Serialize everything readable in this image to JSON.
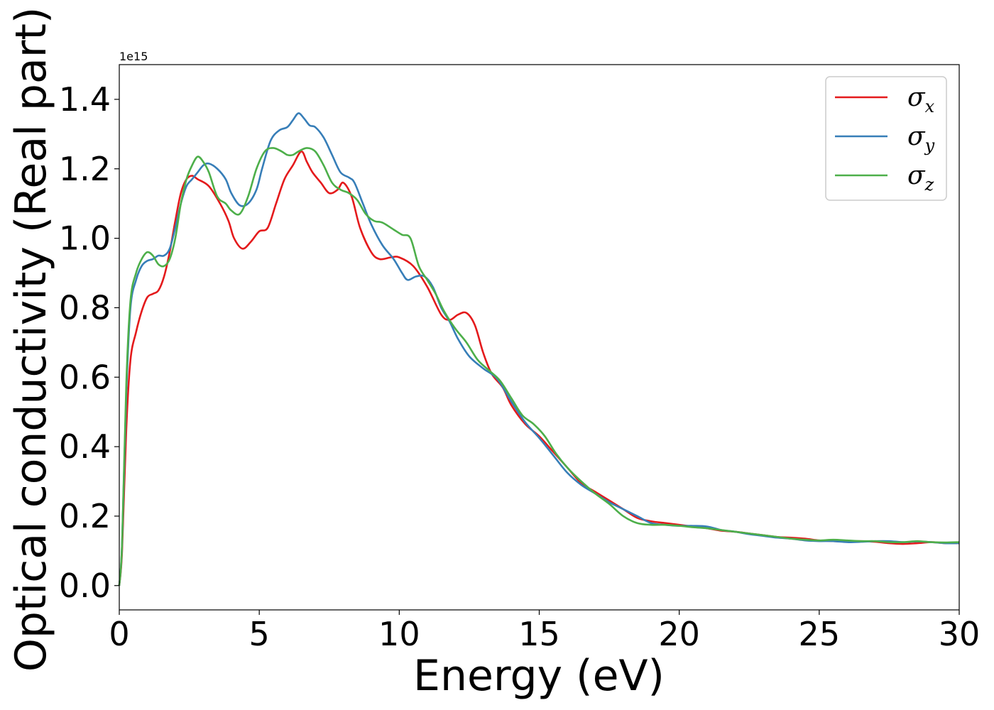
{
  "chart_data": {
    "type": "line",
    "xlabel": "Energy (eV)",
    "ylabel": "Optical conductivity (Real part)",
    "y_offset_label": "1e15",
    "xlim": [
      0,
      30
    ],
    "ylim": [
      -0.07,
      1.5
    ],
    "x_ticks": [
      0,
      5,
      10,
      15,
      20,
      25,
      30
    ],
    "x_tick_labels": [
      "0",
      "5",
      "10",
      "15",
      "20",
      "25",
      "30"
    ],
    "y_ticks": [
      0.0,
      0.2,
      0.4,
      0.6,
      0.8,
      1.0,
      1.2,
      1.4
    ],
    "y_tick_labels": [
      "0.0",
      "0.2",
      "0.4",
      "0.6",
      "0.8",
      "1.0",
      "1.2",
      "1.4"
    ],
    "grid": false,
    "legend_position": "top-right",
    "series": [
      {
        "name": "σ_x",
        "symbol": "σ",
        "subscript": "x",
        "color": "#e41a1c",
        "points": [
          [
            0,
            0
          ],
          [
            0.1,
            0.1
          ],
          [
            0.25,
            0.45
          ],
          [
            0.4,
            0.65
          ],
          [
            0.6,
            0.73
          ],
          [
            0.8,
            0.79
          ],
          [
            1.0,
            0.83
          ],
          [
            1.2,
            0.84
          ],
          [
            1.4,
            0.85
          ],
          [
            1.6,
            0.89
          ],
          [
            1.8,
            0.96
          ],
          [
            2.0,
            1.05
          ],
          [
            2.2,
            1.13
          ],
          [
            2.4,
            1.17
          ],
          [
            2.6,
            1.18
          ],
          [
            2.8,
            1.17
          ],
          [
            3.2,
            1.15
          ],
          [
            3.6,
            1.1
          ],
          [
            3.9,
            1.05
          ],
          [
            4.1,
            1.0
          ],
          [
            4.4,
            0.97
          ],
          [
            4.7,
            0.99
          ],
          [
            5.0,
            1.02
          ],
          [
            5.3,
            1.03
          ],
          [
            5.6,
            1.1
          ],
          [
            5.9,
            1.17
          ],
          [
            6.2,
            1.21
          ],
          [
            6.5,
            1.25
          ],
          [
            6.7,
            1.22
          ],
          [
            6.9,
            1.19
          ],
          [
            7.2,
            1.16
          ],
          [
            7.5,
            1.13
          ],
          [
            7.8,
            1.14
          ],
          [
            8.0,
            1.16
          ],
          [
            8.3,
            1.12
          ],
          [
            8.6,
            1.03
          ],
          [
            9.0,
            0.96
          ],
          [
            9.3,
            0.94
          ],
          [
            9.7,
            0.945
          ],
          [
            10.0,
            0.945
          ],
          [
            10.5,
            0.92
          ],
          [
            11.0,
            0.86
          ],
          [
            11.5,
            0.78
          ],
          [
            11.8,
            0.765
          ],
          [
            12.1,
            0.78
          ],
          [
            12.4,
            0.785
          ],
          [
            12.7,
            0.75
          ],
          [
            13.0,
            0.67
          ],
          [
            13.3,
            0.61
          ],
          [
            13.7,
            0.57
          ],
          [
            14.0,
            0.52
          ],
          [
            14.5,
            0.465
          ],
          [
            15.0,
            0.43
          ],
          [
            15.5,
            0.385
          ],
          [
            16.0,
            0.34
          ],
          [
            16.5,
            0.295
          ],
          [
            17.0,
            0.27
          ],
          [
            17.5,
            0.245
          ],
          [
            18.0,
            0.22
          ],
          [
            18.5,
            0.195
          ],
          [
            19.0,
            0.185
          ],
          [
            19.5,
            0.18
          ],
          [
            20.0,
            0.175
          ],
          [
            20.5,
            0.17
          ],
          [
            21.0,
            0.165
          ],
          [
            21.5,
            0.158
          ],
          [
            22.0,
            0.155
          ],
          [
            22.5,
            0.15
          ],
          [
            23.0,
            0.145
          ],
          [
            23.5,
            0.14
          ],
          [
            24.0,
            0.138
          ],
          [
            24.5,
            0.135
          ],
          [
            25.0,
            0.13
          ],
          [
            25.5,
            0.128
          ],
          [
            26.0,
            0.127
          ],
          [
            26.5,
            0.128
          ],
          [
            27.0,
            0.126
          ],
          [
            27.5,
            0.122
          ],
          [
            28.0,
            0.12
          ],
          [
            28.5,
            0.122
          ],
          [
            29.0,
            0.125
          ],
          [
            29.5,
            0.122
          ],
          [
            30.0,
            0.122
          ]
        ]
      },
      {
        "name": "σ_y",
        "symbol": "σ",
        "subscript": "y",
        "color": "#377eb8",
        "points": [
          [
            0,
            0
          ],
          [
            0.1,
            0.12
          ],
          [
            0.25,
            0.55
          ],
          [
            0.4,
            0.8
          ],
          [
            0.6,
            0.88
          ],
          [
            0.8,
            0.92
          ],
          [
            1.0,
            0.935
          ],
          [
            1.2,
            0.94
          ],
          [
            1.4,
            0.95
          ],
          [
            1.6,
            0.95
          ],
          [
            1.8,
            0.97
          ],
          [
            2.0,
            1.03
          ],
          [
            2.2,
            1.1
          ],
          [
            2.4,
            1.15
          ],
          [
            2.6,
            1.17
          ],
          [
            2.8,
            1.19
          ],
          [
            3.0,
            1.21
          ],
          [
            3.2,
            1.215
          ],
          [
            3.5,
            1.2
          ],
          [
            3.8,
            1.17
          ],
          [
            4.0,
            1.13
          ],
          [
            4.3,
            1.095
          ],
          [
            4.6,
            1.1
          ],
          [
            4.9,
            1.14
          ],
          [
            5.1,
            1.2
          ],
          [
            5.4,
            1.28
          ],
          [
            5.7,
            1.31
          ],
          [
            6.0,
            1.32
          ],
          [
            6.2,
            1.34
          ],
          [
            6.4,
            1.36
          ],
          [
            6.6,
            1.345
          ],
          [
            6.8,
            1.325
          ],
          [
            7.0,
            1.32
          ],
          [
            7.3,
            1.29
          ],
          [
            7.6,
            1.24
          ],
          [
            7.9,
            1.19
          ],
          [
            8.2,
            1.175
          ],
          [
            8.4,
            1.16
          ],
          [
            8.7,
            1.1
          ],
          [
            9.0,
            1.04
          ],
          [
            9.4,
            0.98
          ],
          [
            9.8,
            0.94
          ],
          [
            10.1,
            0.9
          ],
          [
            10.3,
            0.88
          ],
          [
            10.6,
            0.89
          ],
          [
            10.9,
            0.89
          ],
          [
            11.2,
            0.86
          ],
          [
            11.5,
            0.8
          ],
          [
            11.8,
            0.76
          ],
          [
            12.1,
            0.71
          ],
          [
            12.5,
            0.66
          ],
          [
            13.0,
            0.625
          ],
          [
            13.5,
            0.595
          ],
          [
            14.0,
            0.53
          ],
          [
            14.5,
            0.47
          ],
          [
            15.0,
            0.425
          ],
          [
            15.5,
            0.375
          ],
          [
            16.0,
            0.325
          ],
          [
            16.5,
            0.29
          ],
          [
            17.0,
            0.265
          ],
          [
            17.5,
            0.24
          ],
          [
            18.0,
            0.22
          ],
          [
            18.5,
            0.2
          ],
          [
            19.0,
            0.18
          ],
          [
            19.5,
            0.175
          ],
          [
            20.0,
            0.172
          ],
          [
            20.5,
            0.172
          ],
          [
            21.0,
            0.17
          ],
          [
            21.5,
            0.16
          ],
          [
            22.0,
            0.155
          ],
          [
            22.5,
            0.148
          ],
          [
            23.0,
            0.143
          ],
          [
            23.5,
            0.138
          ],
          [
            24.0,
            0.135
          ],
          [
            24.5,
            0.13
          ],
          [
            25.0,
            0.128
          ],
          [
            25.5,
            0.128
          ],
          [
            26.0,
            0.125
          ],
          [
            26.5,
            0.126
          ],
          [
            27.0,
            0.128
          ],
          [
            27.5,
            0.128
          ],
          [
            28.0,
            0.125
          ],
          [
            28.5,
            0.127
          ],
          [
            29.0,
            0.125
          ],
          [
            29.5,
            0.122
          ],
          [
            30.0,
            0.122
          ]
        ]
      },
      {
        "name": "σ_z",
        "symbol": "σ",
        "subscript": "z",
        "color": "#4daf4a",
        "points": [
          [
            0,
            0
          ],
          [
            0.1,
            0.12
          ],
          [
            0.25,
            0.58
          ],
          [
            0.4,
            0.82
          ],
          [
            0.6,
            0.9
          ],
          [
            0.8,
            0.94
          ],
          [
            1.0,
            0.96
          ],
          [
            1.2,
            0.95
          ],
          [
            1.4,
            0.925
          ],
          [
            1.6,
            0.92
          ],
          [
            1.8,
            0.94
          ],
          [
            2.0,
            1.0
          ],
          [
            2.2,
            1.1
          ],
          [
            2.4,
            1.17
          ],
          [
            2.6,
            1.21
          ],
          [
            2.8,
            1.235
          ],
          [
            3.0,
            1.22
          ],
          [
            3.2,
            1.19
          ],
          [
            3.5,
            1.12
          ],
          [
            3.8,
            1.1
          ],
          [
            4.0,
            1.08
          ],
          [
            4.3,
            1.07
          ],
          [
            4.6,
            1.12
          ],
          [
            4.9,
            1.2
          ],
          [
            5.2,
            1.25
          ],
          [
            5.5,
            1.26
          ],
          [
            5.8,
            1.25
          ],
          [
            6.0,
            1.24
          ],
          [
            6.2,
            1.24
          ],
          [
            6.4,
            1.25
          ],
          [
            6.7,
            1.26
          ],
          [
            7.0,
            1.25
          ],
          [
            7.3,
            1.21
          ],
          [
            7.6,
            1.16
          ],
          [
            7.9,
            1.14
          ],
          [
            8.2,
            1.13
          ],
          [
            8.5,
            1.11
          ],
          [
            8.8,
            1.07
          ],
          [
            9.1,
            1.05
          ],
          [
            9.4,
            1.045
          ],
          [
            9.8,
            1.025
          ],
          [
            10.1,
            1.01
          ],
          [
            10.4,
            1.0
          ],
          [
            10.7,
            0.92
          ],
          [
            11.0,
            0.88
          ],
          [
            11.3,
            0.84
          ],
          [
            11.6,
            0.79
          ],
          [
            12.0,
            0.74
          ],
          [
            12.4,
            0.7
          ],
          [
            12.8,
            0.65
          ],
          [
            13.2,
            0.62
          ],
          [
            13.6,
            0.59
          ],
          [
            14.0,
            0.54
          ],
          [
            14.4,
            0.49
          ],
          [
            14.8,
            0.465
          ],
          [
            15.2,
            0.43
          ],
          [
            15.6,
            0.38
          ],
          [
            16.0,
            0.34
          ],
          [
            16.5,
            0.3
          ],
          [
            17.0,
            0.265
          ],
          [
            17.5,
            0.235
          ],
          [
            18.0,
            0.2
          ],
          [
            18.5,
            0.18
          ],
          [
            19.0,
            0.175
          ],
          [
            19.5,
            0.175
          ],
          [
            20.0,
            0.172
          ],
          [
            20.5,
            0.168
          ],
          [
            21.0,
            0.165
          ],
          [
            21.5,
            0.16
          ],
          [
            22.0,
            0.155
          ],
          [
            22.5,
            0.15
          ],
          [
            23.0,
            0.145
          ],
          [
            23.5,
            0.14
          ],
          [
            24.0,
            0.135
          ],
          [
            24.5,
            0.132
          ],
          [
            25.0,
            0.13
          ],
          [
            25.5,
            0.132
          ],
          [
            26.0,
            0.13
          ],
          [
            26.5,
            0.128
          ],
          [
            27.0,
            0.128
          ],
          [
            27.5,
            0.125
          ],
          [
            28.0,
            0.125
          ],
          [
            28.5,
            0.128
          ],
          [
            29.0,
            0.125
          ],
          [
            29.5,
            0.124
          ],
          [
            30.0,
            0.125
          ]
        ]
      }
    ]
  }
}
